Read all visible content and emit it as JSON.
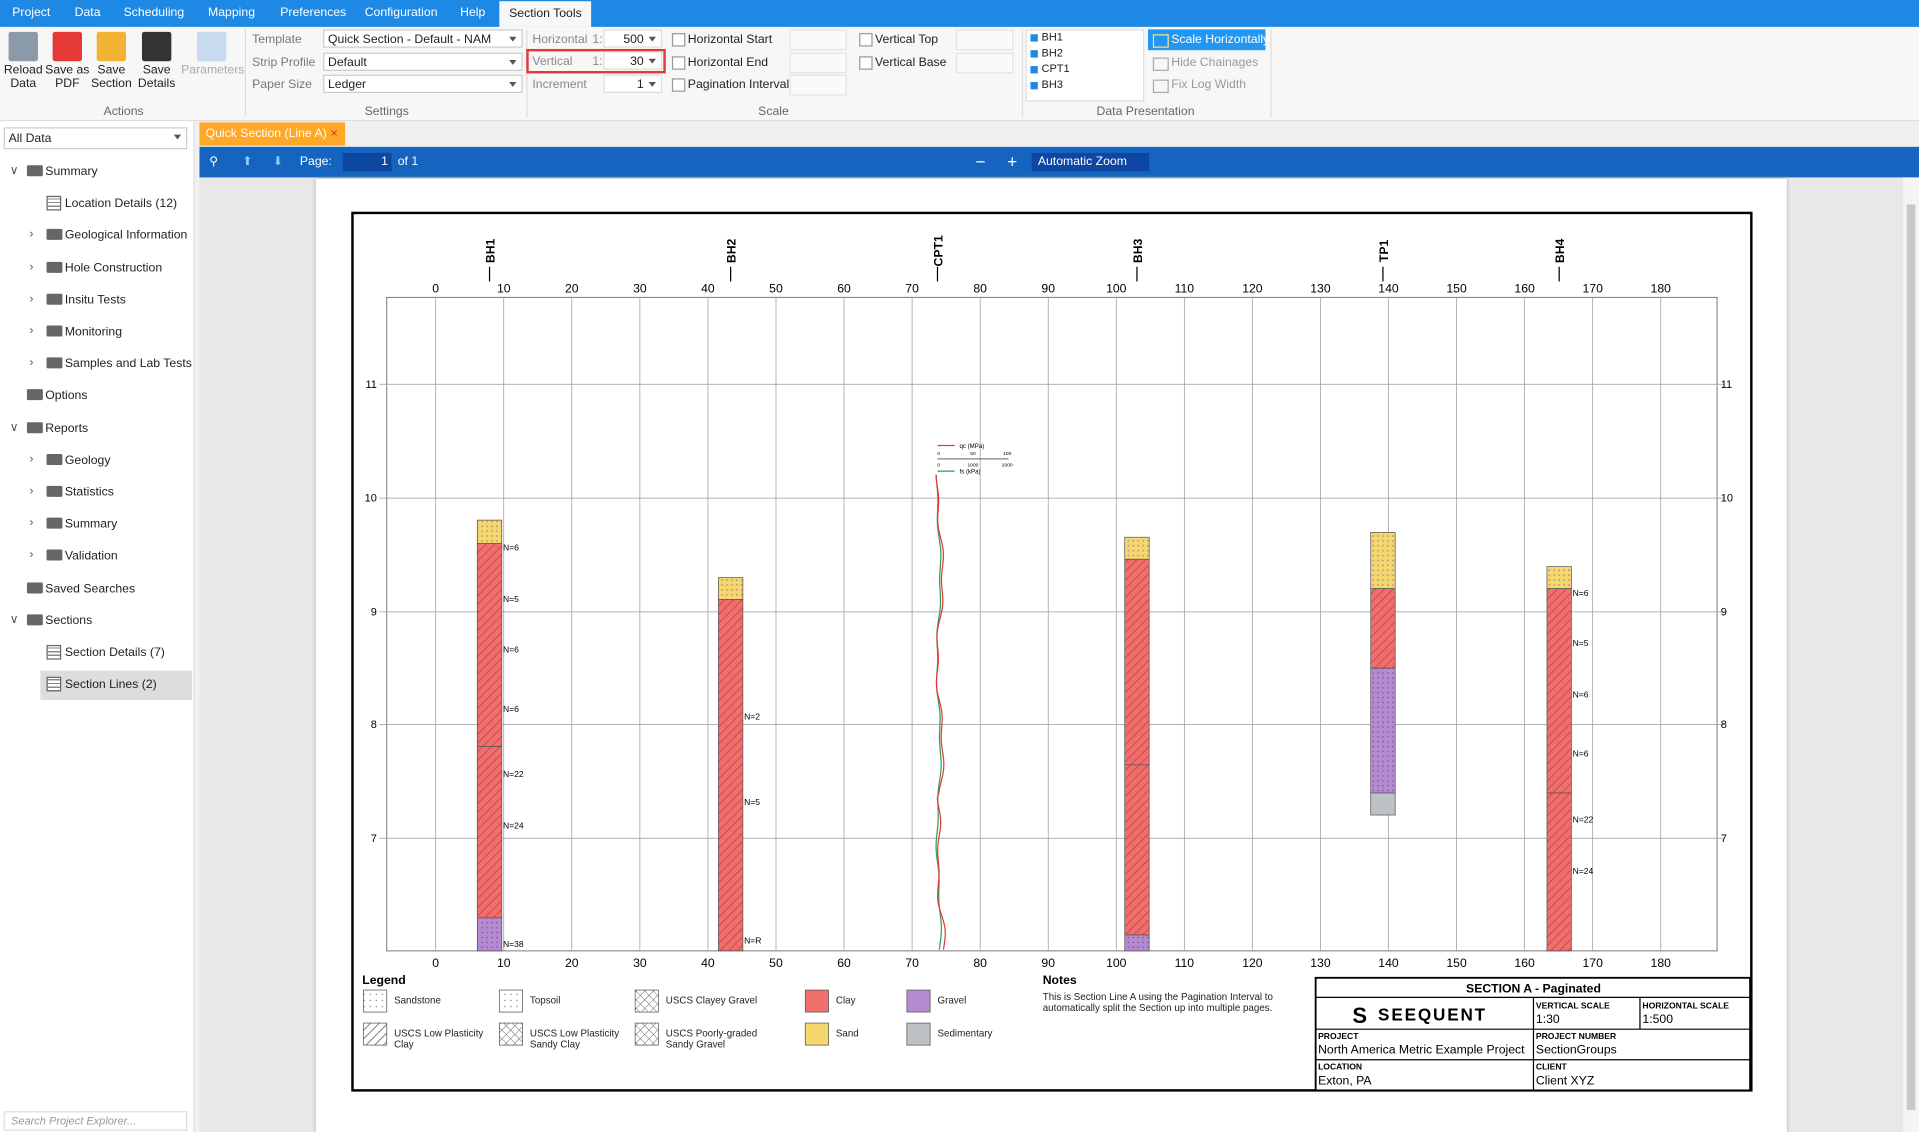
{
  "menu": {
    "tabs": [
      "Project",
      "Data",
      "Scheduling",
      "Mapping",
      "Preferences",
      "Configuration",
      "Help",
      "Section Tools"
    ],
    "active": "Section Tools"
  },
  "ribbon": {
    "actions": {
      "label": "Actions",
      "buttons": [
        "Reload Data",
        "Save as PDF",
        "Save Section",
        "Save Details",
        "Parameters"
      ]
    },
    "settings": {
      "label": "Settings",
      "fields": [
        {
          "label": "Template",
          "value": "Quick Section - Default - NAM"
        },
        {
          "label": "Strip Profile",
          "value": "Default"
        },
        {
          "label": "Paper Size",
          "value": "Ledger"
        }
      ]
    },
    "scale": {
      "label": "Scale",
      "ratio_prefix": "1:",
      "horizontal": {
        "label": "Horizontal",
        "value": "500"
      },
      "vertical": {
        "label": "Vertical",
        "value": "30"
      },
      "increment": {
        "label": "Increment",
        "value": "1"
      },
      "checks": [
        "Horizontal Start",
        "Horizontal End",
        "Pagination Interval",
        "Vertical Top",
        "Vertical Base"
      ]
    },
    "data_presentation": {
      "label": "Data Presentation",
      "holes": [
        "BH1",
        "BH2",
        "CPT1",
        "BH3"
      ],
      "options": [
        "Scale Horizontally",
        "Hide Chainages",
        "Fix Log Width"
      ]
    }
  },
  "explorer": {
    "filter": "All Data",
    "search": "Search Project Explorer...",
    "tree": [
      {
        "label": "Summary",
        "icon": "folder",
        "expanded": true,
        "children": [
          {
            "label": "Location Details (12)",
            "icon": "table"
          },
          {
            "label": "Geological Information",
            "icon": "folder",
            "expanded": false
          },
          {
            "label": "Hole Construction",
            "icon": "folder",
            "expanded": false
          },
          {
            "label": "Insitu Tests",
            "icon": "folder",
            "expanded": false
          },
          {
            "label": "Monitoring",
            "icon": "folder",
            "expanded": false
          },
          {
            "label": "Samples and Lab Tests",
            "icon": "folder",
            "expanded": false
          }
        ]
      },
      {
        "label": "Options",
        "icon": "folder"
      },
      {
        "label": "Reports",
        "icon": "folder",
        "expanded": true,
        "children": [
          {
            "label": "Geology",
            "icon": "folder",
            "expanded": false
          },
          {
            "label": "Statistics",
            "icon": "folder",
            "expanded": false
          },
          {
            "label": "Summary",
            "icon": "folder",
            "expanded": false
          },
          {
            "label": "Validation",
            "icon": "folder",
            "expanded": false
          }
        ]
      },
      {
        "label": "Saved Searches",
        "icon": "folder"
      },
      {
        "label": "Sections",
        "icon": "folder",
        "expanded": true,
        "children": [
          {
            "label": "Section Details (7)",
            "icon": "table"
          },
          {
            "label": "Section Lines (2)",
            "icon": "table",
            "selected": true
          }
        ]
      }
    ]
  },
  "document_tab": "Quick Section (Line A)",
  "viewer": {
    "page_label": "Page:",
    "page": "1",
    "of": "of 1",
    "zoom": "Automatic Zoom"
  },
  "section": {
    "chainage_ticks": [
      0,
      10,
      20,
      30,
      40,
      50,
      60,
      70,
      80,
      90,
      100,
      110,
      120,
      130,
      140,
      150,
      160,
      170,
      180
    ],
    "elevation_ticks": [
      "11",
      "10",
      "9",
      "8",
      "7"
    ],
    "holes": [
      {
        "name": "BH1",
        "n_values": [
          "N=6",
          "N=5",
          "N=6",
          "N=6",
          "N=22",
          "N=24",
          "N=38"
        ]
      },
      {
        "name": "BH2",
        "n_values": [
          "N=2",
          "N=5",
          "N=R"
        ]
      },
      {
        "name": "CPT1",
        "n_values": []
      },
      {
        "name": "BH3",
        "n_values": []
      },
      {
        "name": "TP1",
        "n_values": []
      },
      {
        "name": "BH4",
        "n_values": [
          "N=6",
          "N=5",
          "N=6",
          "N=6",
          "N=22",
          "N=24"
        ]
      }
    ],
    "cpt_legend": {
      "qc": "qc (MPa)",
      "qc_ticks": [
        "0",
        "50",
        "100"
      ],
      "fs": "fs (kPa)",
      "fs_ticks": [
        "0",
        "1000",
        "2000"
      ]
    },
    "legend": {
      "title": "Legend",
      "items": [
        "Sandstone",
        "Topsoil",
        "USCS Clayey Gravel",
        "Clay",
        "Gravel",
        "USCS Low Plasticity Clay",
        "USCS Low Plasticity Sandy Clay",
        "USCS Poorly-graded Sandy Gravel",
        "Sand",
        "Sedimentary"
      ]
    },
    "notes": {
      "title": "Notes",
      "text": "This is Section Line A using the Pagination Interval to automatically split the Section up into multiple pages."
    },
    "title_block": {
      "title": "SECTION A - Paginated",
      "logo": "SEEQUENT",
      "vertical_scale": {
        "label": "VERTICAL SCALE",
        "value": "1:30"
      },
      "horizontal_scale": {
        "label": "HORIZONTAL SCALE",
        "value": "1:500"
      },
      "project": {
        "label": "PROJECT",
        "value": "North America Metric Example Project"
      },
      "project_number": {
        "label": "PROJECT NUMBER",
        "value": "SectionGroups"
      },
      "location": {
        "label": "LOCATION",
        "value": "Exton, PA"
      },
      "client": {
        "label": "CLIENT",
        "value": "Client XYZ"
      }
    }
  }
}
